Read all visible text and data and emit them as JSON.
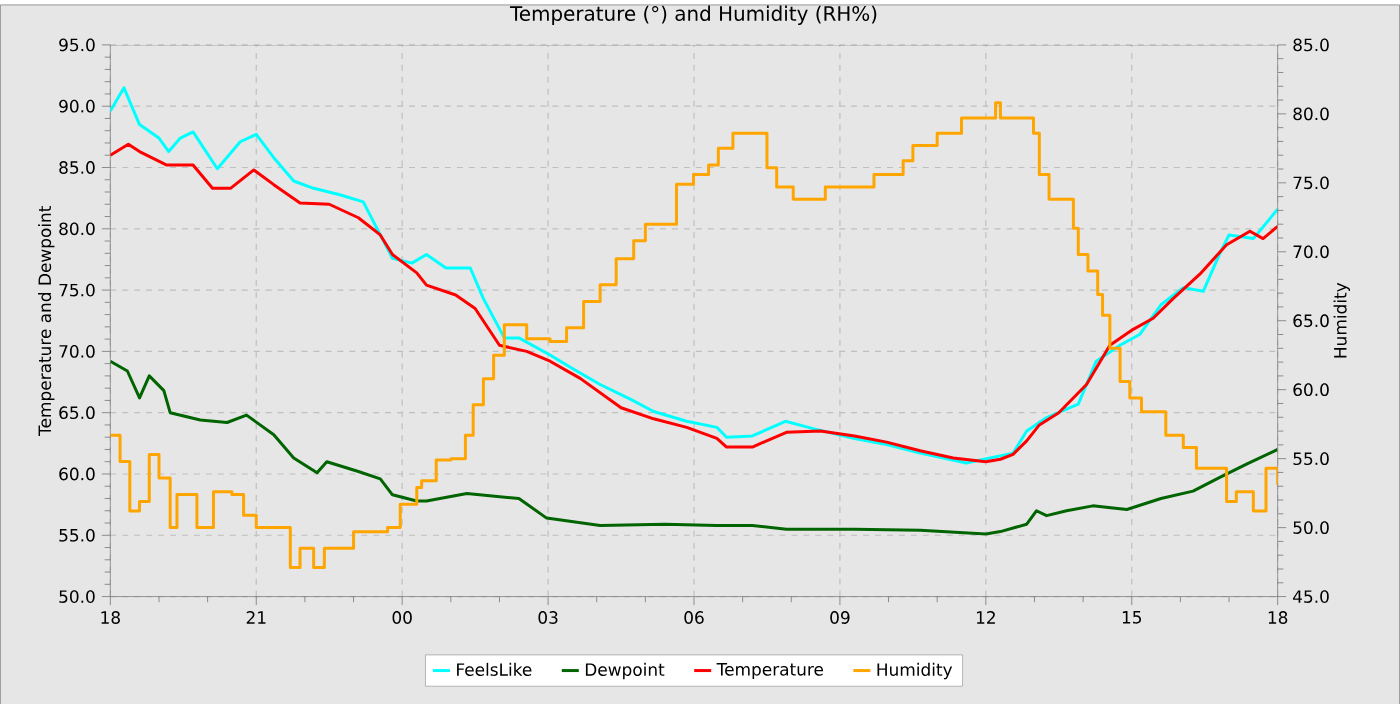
{
  "chart_data": {
    "type": "line",
    "title": "Temperature (°) and Humidity (RH%)",
    "ylabel": "Temperature and Dewpoint",
    "y2label": "Humidity",
    "xlim": [
      18,
      42
    ],
    "xticks": [
      {
        "value": 18,
        "label": "18"
      },
      {
        "value": 21,
        "label": "21"
      },
      {
        "value": 24,
        "label": "00"
      },
      {
        "value": 27,
        "label": "03"
      },
      {
        "value": 30,
        "label": "06"
      },
      {
        "value": 33,
        "label": "09"
      },
      {
        "value": 36,
        "label": "12"
      },
      {
        "value": 39,
        "label": "15"
      },
      {
        "value": 42,
        "label": "18"
      }
    ],
    "ylim": [
      50,
      95
    ],
    "yticks": [
      {
        "value": 50,
        "label": "50.0"
      },
      {
        "value": 55,
        "label": "55.0"
      },
      {
        "value": 60,
        "label": "60.0"
      },
      {
        "value": 65,
        "label": "65.0"
      },
      {
        "value": 70,
        "label": "70.0"
      },
      {
        "value": 75,
        "label": "75.0"
      },
      {
        "value": 80,
        "label": "80.0"
      },
      {
        "value": 85,
        "label": "85.0"
      },
      {
        "value": 90,
        "label": "90.0"
      },
      {
        "value": 95,
        "label": "95.0"
      }
    ],
    "y2lim": [
      45,
      85
    ],
    "y2ticks": [
      {
        "value": 45,
        "label": "45.0"
      },
      {
        "value": 50,
        "label": "50.0"
      },
      {
        "value": 55,
        "label": "55.0"
      },
      {
        "value": 60,
        "label": "60.0"
      },
      {
        "value": 65,
        "label": "65.0"
      },
      {
        "value": 70,
        "label": "70.0"
      },
      {
        "value": 75,
        "label": "75.0"
      },
      {
        "value": 80,
        "label": "80.0"
      },
      {
        "value": 85,
        "label": "85.0"
      }
    ],
    "grid": true,
    "legend": "bottom",
    "series": [
      {
        "name": "FeelsLike",
        "color": "#00ffff",
        "x": [
          18.0,
          18.28,
          18.6,
          19.0,
          19.2,
          19.44,
          19.7,
          20.2,
          20.67,
          21.0,
          21.36,
          21.77,
          22.18,
          22.7,
          23.2,
          23.55,
          23.8,
          24.2,
          24.5,
          24.9,
          25.4,
          25.67,
          26.1,
          26.4,
          27.04,
          27.5,
          28.07,
          28.69,
          29.17,
          29.85,
          30.47,
          30.67,
          31.2,
          31.88,
          32.45,
          33.3,
          33.96,
          34.65,
          35.6,
          36.56,
          36.84,
          37.25,
          37.9,
          38.27,
          38.76,
          39.17,
          39.6,
          40.06,
          40.47,
          40.8,
          41.0,
          41.5,
          42.0
        ],
        "values": [
          89.6,
          91.5,
          88.5,
          87.4,
          86.3,
          87.4,
          87.9,
          84.9,
          87.1,
          87.7,
          85.8,
          83.9,
          83.3,
          82.8,
          82.2,
          79.5,
          77.6,
          77.2,
          77.9,
          76.8,
          76.8,
          74.3,
          71.1,
          71.1,
          69.7,
          68.6,
          67.3,
          66.1,
          65.1,
          64.3,
          63.8,
          63.0,
          63.1,
          64.3,
          63.7,
          62.9,
          62.4,
          61.7,
          60.9,
          61.7,
          63.5,
          64.6,
          65.7,
          69.2,
          70.5,
          71.4,
          73.8,
          75.2,
          74.9,
          77.9,
          79.5,
          79.2,
          81.6
        ]
      },
      {
        "name": "Dewpoint",
        "color": "#006400",
        "x": [
          18.0,
          18.35,
          18.6,
          18.8,
          19.1,
          19.23,
          19.85,
          20.4,
          20.8,
          21.36,
          21.77,
          22.25,
          22.45,
          23.1,
          23.55,
          23.8,
          24.3,
          24.5,
          25.33,
          26.4,
          26.97,
          28.07,
          29.4,
          30.47,
          31.2,
          31.9,
          33.3,
          34.65,
          36.0,
          36.3,
          36.84,
          37.04,
          37.25,
          37.66,
          38.2,
          38.9,
          39.6,
          40.26,
          40.8,
          41.36,
          42.0
        ],
        "values": [
          69.2,
          68.4,
          66.2,
          68.0,
          66.8,
          65.0,
          64.4,
          64.2,
          64.8,
          63.2,
          61.3,
          60.1,
          61.0,
          60.2,
          59.6,
          58.3,
          57.8,
          57.8,
          58.4,
          58.0,
          56.4,
          55.8,
          55.9,
          55.8,
          55.8,
          55.5,
          55.5,
          55.4,
          55.1,
          55.3,
          55.9,
          57.0,
          56.6,
          57.0,
          57.4,
          57.1,
          58.0,
          58.6,
          59.7,
          60.8,
          62.0
        ]
      },
      {
        "name": "Temperature",
        "color": "#ff0000",
        "x": [
          18.0,
          18.37,
          18.6,
          19.16,
          19.7,
          20.1,
          20.47,
          20.95,
          21.36,
          21.9,
          22.5,
          23.1,
          23.55,
          23.8,
          24.3,
          24.5,
          25.1,
          25.5,
          26.0,
          26.56,
          27.04,
          27.66,
          28.5,
          29.17,
          29.85,
          30.47,
          30.67,
          31.2,
          31.9,
          32.6,
          33.3,
          33.96,
          34.65,
          35.33,
          36.0,
          36.3,
          36.56,
          36.84,
          37.1,
          37.5,
          38.07,
          38.55,
          39.03,
          39.44,
          39.85,
          40.4,
          40.95,
          41.43,
          41.7,
          42.0
        ],
        "values": [
          86.0,
          86.9,
          86.3,
          85.2,
          85.2,
          83.3,
          83.3,
          84.8,
          83.6,
          82.1,
          82.0,
          80.9,
          79.5,
          77.9,
          76.4,
          75.4,
          74.6,
          73.5,
          70.5,
          70.0,
          69.2,
          67.8,
          65.4,
          64.5,
          63.8,
          62.9,
          62.2,
          62.2,
          63.4,
          63.5,
          63.1,
          62.6,
          61.9,
          61.3,
          61.0,
          61.2,
          61.6,
          62.7,
          64.0,
          65.0,
          67.3,
          70.5,
          71.8,
          72.7,
          74.3,
          76.3,
          78.7,
          79.8,
          79.2,
          80.2
        ]
      },
      {
        "name": "Humidity",
        "color": "#ffa500",
        "type": "step",
        "axis": "y2",
        "x": [
          18.0,
          18.2,
          18.4,
          18.6,
          18.8,
          19.0,
          19.23,
          19.37,
          19.78,
          20.12,
          20.5,
          20.74,
          21.0,
          21.4,
          21.7,
          21.9,
          22.18,
          22.4,
          23.0,
          23.7,
          23.96,
          24.3,
          24.4,
          24.7,
          25.0,
          25.3,
          25.46,
          25.67,
          25.88,
          26.1,
          26.56,
          27.04,
          27.38,
          27.73,
          28.07,
          28.4,
          28.76,
          29.0,
          29.64,
          29.99,
          30.3,
          30.5,
          30.8,
          31.5,
          31.7,
          32.04,
          32.7,
          33.7,
          34.3,
          34.5,
          35.0,
          35.5,
          36.2,
          36.3,
          36.98,
          37.1,
          37.3,
          37.8,
          37.9,
          38.1,
          38.3,
          38.4,
          38.55,
          38.76,
          38.96,
          39.2,
          39.7,
          40.06,
          40.33,
          40.95,
          41.15,
          41.5,
          41.76,
          42.0
        ],
        "values": [
          56.7,
          54.8,
          51.2,
          51.9,
          55.3,
          53.6,
          50.0,
          52.4,
          50.0,
          52.6,
          52.4,
          50.9,
          50.0,
          50.0,
          47.1,
          48.5,
          47.1,
          48.5,
          49.7,
          50.0,
          51.7,
          52.9,
          53.4,
          54.9,
          55.0,
          56.7,
          58.9,
          60.8,
          62.5,
          64.7,
          63.7,
          63.5,
          64.5,
          66.4,
          67.6,
          69.5,
          70.8,
          72.0,
          74.9,
          75.6,
          76.3,
          77.5,
          78.6,
          76.1,
          74.7,
          73.8,
          74.7,
          75.6,
          76.6,
          77.7,
          78.6,
          79.7,
          80.8,
          79.7,
          78.6,
          75.6,
          73.8,
          71.7,
          69.8,
          68.6,
          66.9,
          65.4,
          63.0,
          60.6,
          59.4,
          58.4,
          56.7,
          55.8,
          54.3,
          51.9,
          52.6,
          51.2,
          54.3,
          53.1
        ]
      }
    ]
  }
}
